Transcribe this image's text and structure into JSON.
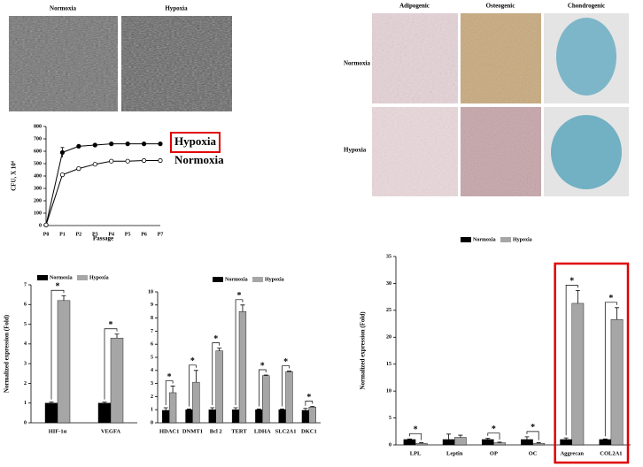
{
  "micrographs": {
    "left": {
      "columns": [
        "Normoxia",
        "Hypoxia"
      ]
    },
    "right": {
      "columns": [
        "Adipogenic",
        "Osteogenic",
        "Chondrogenic"
      ],
      "rows": [
        "Normoxia",
        "Hypoxia"
      ]
    }
  },
  "chart_data": [
    {
      "type": "line",
      "x_label": "Passage",
      "y_label": "CFU, X 10⁴",
      "categories": [
        "P0",
        "P1",
        "P2",
        "P3",
        "P4",
        "P5",
        "P6",
        "P7"
      ],
      "series": [
        {
          "name": "Hypoxia",
          "color": "#000000",
          "marker_fill": "#000000",
          "highlight": true,
          "values": [
            5,
            590,
            640,
            650,
            660,
            660,
            660,
            660
          ],
          "errors": [
            null,
            40,
            null,
            null,
            null,
            null,
            null,
            null
          ]
        },
        {
          "name": "Normoxia",
          "color": "#000000",
          "marker_fill": "#ffffff",
          "values": [
            5,
            410,
            460,
            495,
            520,
            520,
            525,
            525
          ]
        }
      ],
      "ylim": [
        0,
        800
      ],
      "yticks": [
        0,
        100,
        200,
        300,
        400,
        500,
        600,
        700,
        800
      ]
    },
    {
      "type": "bar",
      "y_label": "Normalized expression (Fold)",
      "categories": [
        "HIF-1α",
        "VEGFA"
      ],
      "series": [
        {
          "name": "Normoxia",
          "color": "#000000",
          "values": [
            1,
            1
          ],
          "errors": [
            0.05,
            0.05
          ]
        },
        {
          "name": "Hypoxia",
          "color": "#a6a6a6",
          "values": [
            6.2,
            4.3
          ],
          "errors": [
            0.25,
            0.2
          ]
        }
      ],
      "significance": [
        "*",
        "*"
      ],
      "ylim": [
        0,
        7
      ],
      "yticks": [
        0,
        1,
        2,
        3,
        4,
        5,
        6,
        7
      ]
    },
    {
      "type": "bar",
      "categories": [
        "HDAC1",
        "DNMT1",
        "Bcl 2",
        "TERT",
        "LDHA",
        "SLC2A1",
        "DKC1"
      ],
      "series": [
        {
          "name": "Normoxia",
          "color": "#000000",
          "values": [
            0.95,
            1,
            1,
            1,
            1,
            1,
            0.95
          ],
          "errors": [
            0.2,
            0.05,
            0.15,
            0.15,
            0.05,
            0.05,
            0.15
          ]
        },
        {
          "name": "Hypoxia",
          "color": "#a6a6a6",
          "values": [
            2.3,
            3.1,
            5.5,
            8.5,
            3.6,
            3.9,
            1.2
          ],
          "errors": [
            0.5,
            0.9,
            0.2,
            0.5,
            0.05,
            0.05,
            0.05
          ]
        }
      ],
      "significance": [
        "*",
        "*",
        "*",
        "*",
        "*",
        "*",
        "*"
      ],
      "ylim": [
        0,
        10
      ],
      "yticks": [
        0,
        1,
        2,
        3,
        4,
        5,
        6,
        7,
        8,
        9,
        10
      ]
    },
    {
      "type": "bar",
      "y_label": "Normalized expression (Fold)",
      "categories": [
        "LPL",
        "Leptin",
        "OP",
        "OC",
        "Aggrecan",
        "COL2A1"
      ],
      "series": [
        {
          "name": "Normoxia",
          "color": "#000000",
          "values": [
            1,
            1,
            1,
            1,
            1,
            1
          ],
          "errors": [
            0.1,
            1,
            0.2,
            0.5,
            0.3,
            0.1
          ]
        },
        {
          "name": "Hypoxia",
          "color": "#a6a6a6",
          "values": [
            0.3,
            1.4,
            0.4,
            0.3,
            26.3,
            23.3
          ],
          "errors": [
            0.1,
            0.4,
            0.1,
            0.1,
            2.4,
            2.2
          ]
        }
      ],
      "significance": [
        "*",
        null,
        "*",
        "*",
        "*",
        "*"
      ],
      "highlight": [
        "Aggrecan",
        "COL2A1"
      ],
      "ylim": [
        0,
        35
      ],
      "yticks": [
        0,
        5,
        10,
        15,
        20,
        25,
        30,
        35
      ]
    }
  ]
}
